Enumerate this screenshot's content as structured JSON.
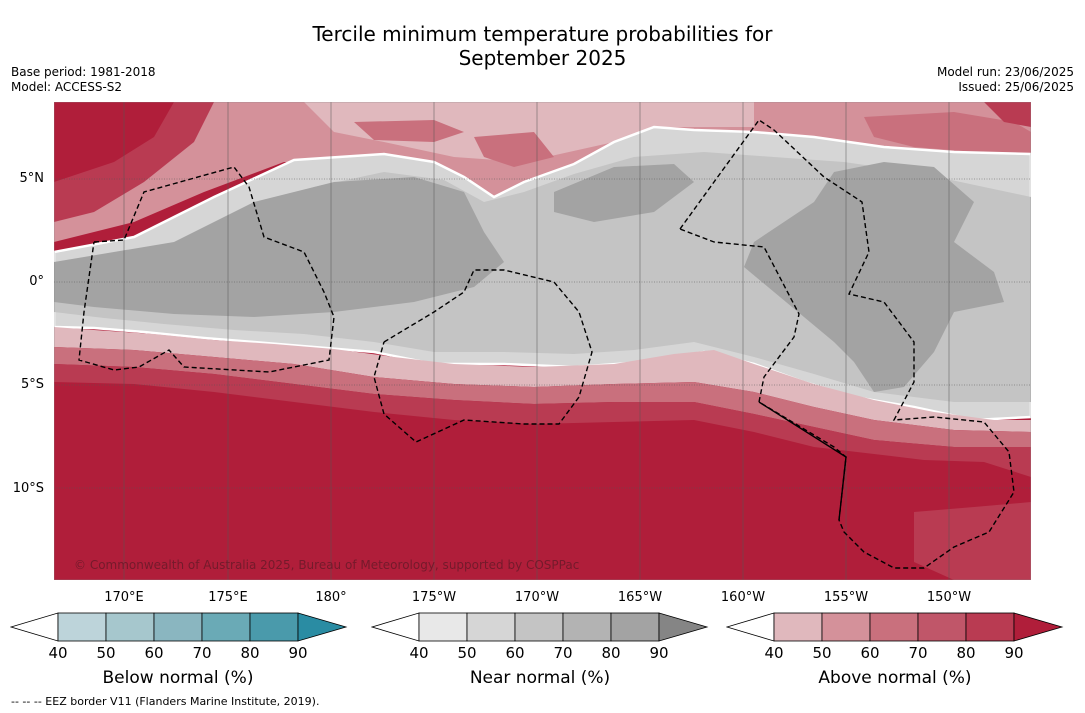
{
  "title_line1": "Tercile minimum temperature probabilities for",
  "title_line2": "September 2025",
  "base_period": "Base period: 1981-2018",
  "model": "Model: ACCESS-S2",
  "model_run": "Model run: 23/06/2025",
  "issued": "Issued: 25/06/2025",
  "copyright": "© Commonwealth of Australia 2025, Bureau of Meteorology, supported by COSPPac",
  "lat_labels": [
    "5°N",
    "0°",
    "5°S",
    "10°S"
  ],
  "lon_labels": [
    "170°E",
    "175°E",
    "180°",
    "175°W",
    "170°W",
    "165°W",
    "160°W",
    "155°W",
    "150°W"
  ],
  "colorbars": [
    {
      "label": "Below normal (%)",
      "ticks": [
        "40",
        "50",
        "60",
        "70",
        "80",
        "90"
      ],
      "colors": [
        "#ffffff",
        "#bdd4da",
        "#a6c7cd",
        "#8ab6c0",
        "#6aaab6",
        "#4a9aab",
        "#2a8ca3"
      ]
    },
    {
      "label": "Near normal (%)",
      "ticks": [
        "40",
        "50",
        "60",
        "70",
        "80",
        "90"
      ],
      "colors": [
        "#ffffff",
        "#e8e8e8",
        "#d6d6d6",
        "#c4c4c4",
        "#b3b3b3",
        "#a3a3a3",
        "#858585"
      ]
    },
    {
      "label": "Above normal (%)",
      "ticks": [
        "40",
        "50",
        "60",
        "70",
        "80",
        "90"
      ],
      "colors": [
        "#ffffff",
        "#e0b8bd",
        "#d4919a",
        "#c9707d",
        "#c05669",
        "#b93b52",
        "#b01e3a"
      ]
    }
  ],
  "footnote": "-- -- -- EEZ border V11 (Flanders Marine Institute, 2019)."
}
